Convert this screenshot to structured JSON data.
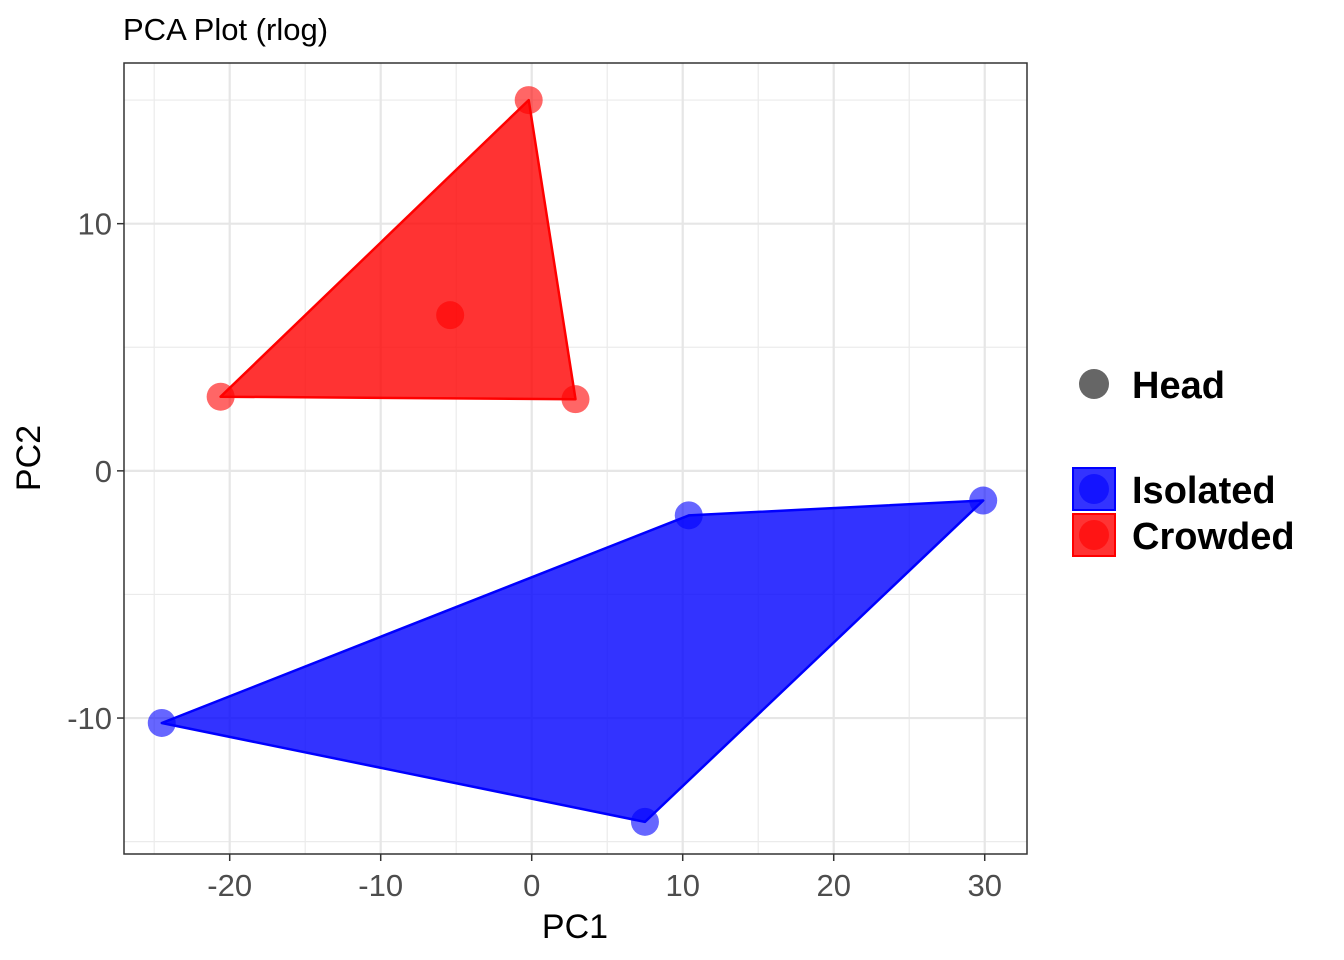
{
  "chart_data": {
    "type": "scatter",
    "title": "PCA Plot (rlog)",
    "xlabel": "PC1",
    "ylabel": "PC2",
    "xlim": [
      -27,
      32.8
    ],
    "ylim": [
      -15.5,
      16.5
    ],
    "x_ticks": [
      -20,
      -10,
      0,
      10,
      20,
      30
    ],
    "x_tick_labels": [
      "-20",
      "-10",
      "0",
      "10",
      "20",
      "30"
    ],
    "y_ticks": [
      -10,
      0,
      10
    ],
    "y_tick_labels": [
      "-10",
      "0",
      "10"
    ],
    "grid": true,
    "legend_position": "right",
    "shape_legend": {
      "label": "Head",
      "color": "#666666"
    },
    "series": [
      {
        "name": "Isolated",
        "color": "#0000ff",
        "hull": [
          [
            -24.5,
            -10.2
          ],
          [
            7.5,
            -14.2
          ],
          [
            29.9,
            -1.2
          ],
          [
            10.4,
            -1.8
          ]
        ],
        "points": [
          [
            -24.5,
            -10.2
          ],
          [
            7.5,
            -14.2
          ],
          [
            10.4,
            -1.8
          ],
          [
            29.9,
            -1.2
          ]
        ]
      },
      {
        "name": "Crowded",
        "color": "#ff0000",
        "hull": [
          [
            -20.6,
            3.0
          ],
          [
            2.9,
            2.9
          ],
          [
            -0.2,
            15.0
          ]
        ],
        "points": [
          [
            -20.6,
            3.0
          ],
          [
            -0.2,
            15.0
          ],
          [
            2.9,
            2.9
          ],
          [
            -5.4,
            6.3
          ]
        ]
      }
    ]
  }
}
